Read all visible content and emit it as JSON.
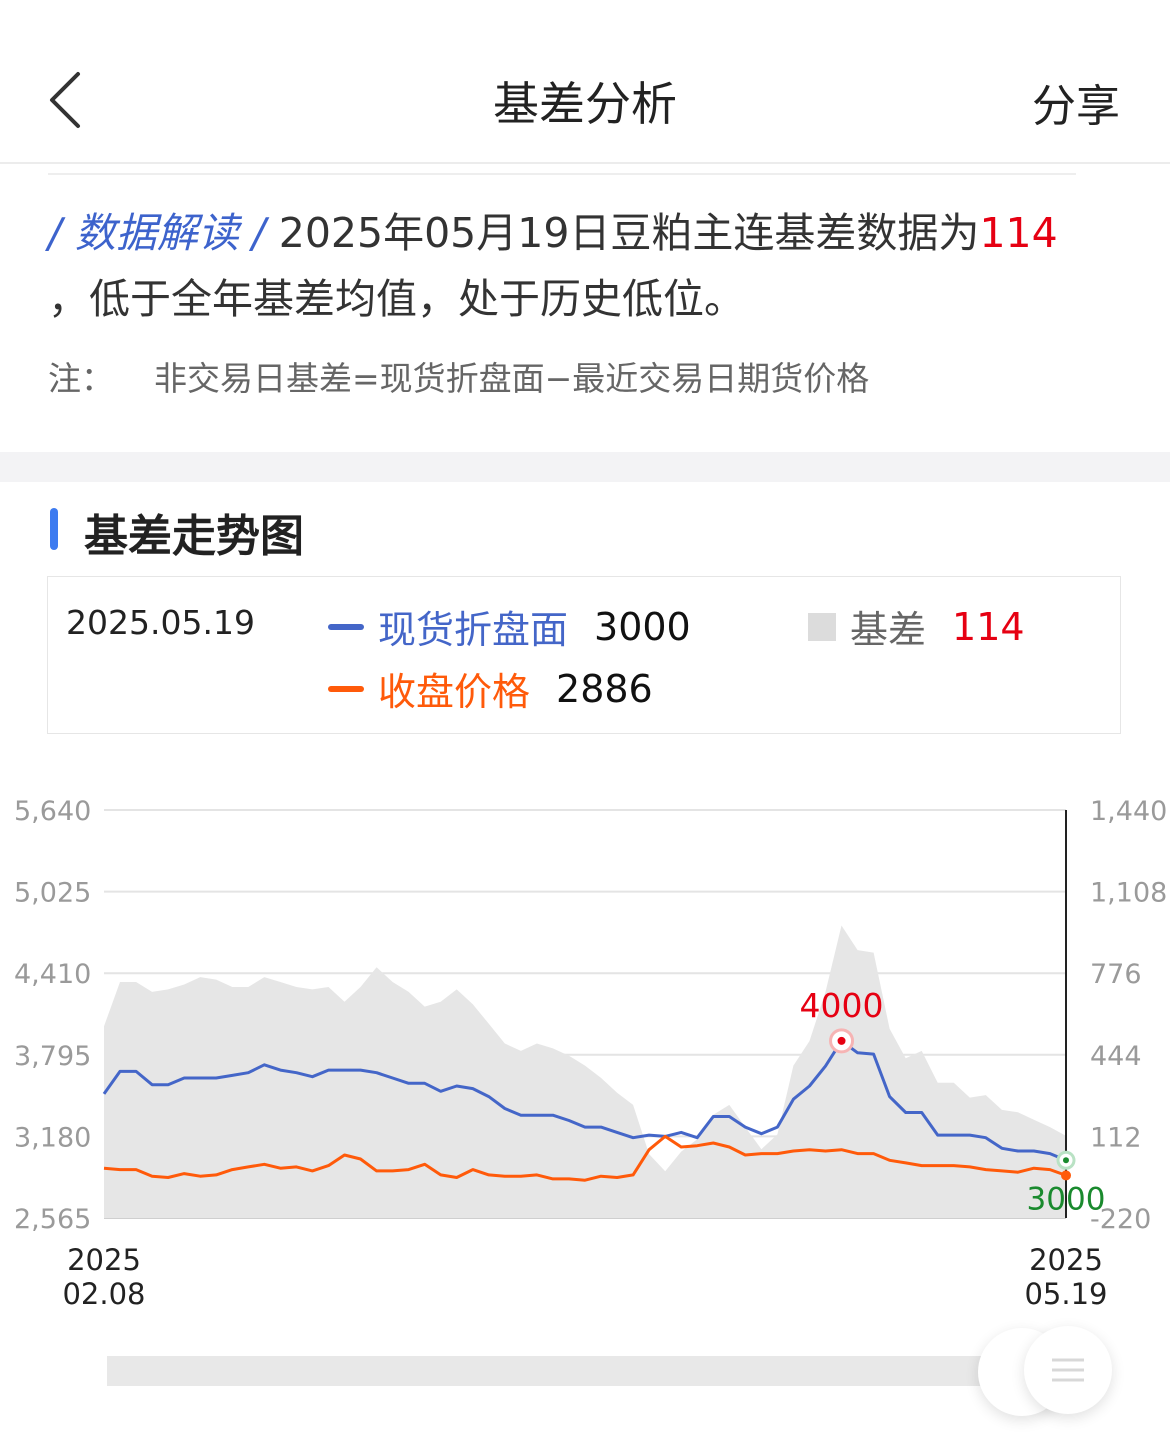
{
  "header": {
    "title": "基差分析",
    "share_label": "分享"
  },
  "interpretation": {
    "tag": "/ 数据解读 /",
    "text_before": "2025年05月19日豆粕主连基差数据为",
    "highlight": "114",
    "text_after": "，低于全年基差均值，处于历史低位。"
  },
  "note": {
    "label": "注：",
    "text": "非交易日基差=现货折盘面−最近交易日期货价格"
  },
  "section": {
    "title": "基差走势图"
  },
  "legend": {
    "date": "2025.05.19",
    "spot": {
      "label": "现货折盘面",
      "value": "3000"
    },
    "basis": {
      "label": "基差",
      "value": "114"
    },
    "close": {
      "label": "收盘价格",
      "value": "2886"
    }
  },
  "colors": {
    "spot": "#4466c8",
    "close": "#ff5a0a",
    "basis": "#e6e6e6",
    "highlight": "#e60012",
    "end_label": "#1a8a2e"
  },
  "chart_data": {
    "type": "line",
    "x_start": "2025\n02.08",
    "x_end": "2025\n05.19",
    "y_left_ticks": [
      "5,640",
      "5,025",
      "4,410",
      "3,795",
      "3,180",
      "2,565"
    ],
    "y_right_ticks": [
      "1,440",
      "1,108",
      "776",
      "444",
      "112",
      "-220"
    ],
    "y_left_range": [
      2565,
      5640
    ],
    "y_right_range": [
      -220,
      1440
    ],
    "series": [
      {
        "name": "现货折盘面",
        "axis": "left",
        "values": [
          3500,
          3670,
          3670,
          3570,
          3570,
          3620,
          3620,
          3620,
          3640,
          3660,
          3720,
          3680,
          3660,
          3630,
          3680,
          3680,
          3680,
          3660,
          3620,
          3580,
          3580,
          3520,
          3560,
          3540,
          3480,
          3390,
          3340,
          3340,
          3340,
          3300,
          3250,
          3250,
          3210,
          3170,
          3190,
          3180,
          3210,
          3170,
          3330,
          3330,
          3250,
          3200,
          3250,
          3460,
          3560,
          3710,
          3900,
          3810,
          3800,
          3480,
          3360,
          3360,
          3190,
          3190,
          3190,
          3170,
          3090,
          3070,
          3070,
          3050,
          3000
        ]
      },
      {
        "name": "收盘价格",
        "axis": "left",
        "values": [
          2940,
          2930,
          2930,
          2880,
          2870,
          2900,
          2880,
          2890,
          2930,
          2950,
          2970,
          2940,
          2950,
          2920,
          2960,
          3040,
          3010,
          2920,
          2920,
          2930,
          2970,
          2890,
          2870,
          2930,
          2890,
          2880,
          2880,
          2890,
          2860,
          2860,
          2850,
          2880,
          2870,
          2890,
          3080,
          3180,
          3100,
          3110,
          3130,
          3100,
          3040,
          3050,
          3050,
          3070,
          3080,
          3070,
          3080,
          3050,
          3050,
          3000,
          2980,
          2960,
          2960,
          2960,
          2950,
          2930,
          2920,
          2910,
          2940,
          2930,
          2886
        ]
      },
      {
        "name": "基差",
        "axis": "right",
        "values": [
          560,
          740,
          740,
          700,
          710,
          730,
          760,
          750,
          720,
          720,
          760,
          740,
          720,
          710,
          720,
          660,
          720,
          800,
          740,
          700,
          640,
          660,
          710,
          650,
          570,
          490,
          460,
          490,
          470,
          440,
          400,
          350,
          290,
          240,
          40,
          -30,
          50,
          100,
          200,
          240,
          150,
          60,
          120,
          400,
          500,
          700,
          970,
          870,
          860,
          550,
          430,
          460,
          330,
          330,
          270,
          280,
          220,
          210,
          180,
          150,
          114
        ]
      }
    ],
    "annotations": [
      {
        "text": "4000",
        "series": "现货折盘面",
        "color": "#e60012"
      },
      {
        "text": "3000",
        "series": "现货折盘面",
        "color": "#1a8a2e"
      }
    ]
  }
}
